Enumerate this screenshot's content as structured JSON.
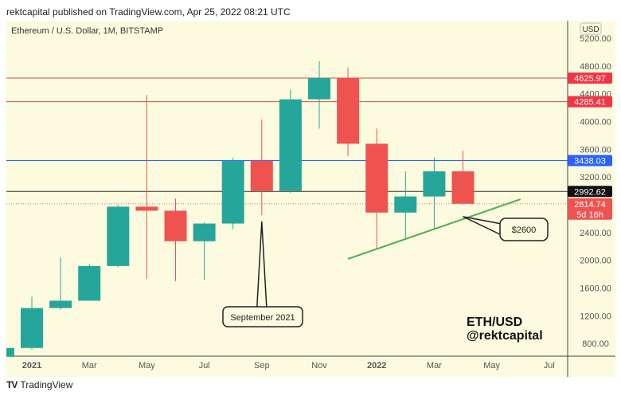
{
  "header": {
    "published": "rektcapital published on TradingView.com, Apr 25, 2022 08:21 UTC"
  },
  "footer": {
    "brand": "TradingView",
    "logo_icon": "tradingview-logo-icon"
  },
  "colors": {
    "up": "#26a69a",
    "down": "#ef5350",
    "resistance": "#c0504d",
    "blue_line": "#2962ff",
    "trendline": "#4caf50",
    "background": "#fdfbdf"
  },
  "chart_data": {
    "type": "candlestick",
    "title": "Ethereum / U.S. Dollar, 1M, BITSTAMP",
    "currency": "USD",
    "ylim": [
      600,
      5400
    ],
    "y_ticks": [
      "5200.00",
      "4800.00",
      "4400.00",
      "4000.00",
      "3600.00",
      "3200.00",
      "2400.00",
      "2000.00",
      "1600.00",
      "1200.00",
      "800.00"
    ],
    "x_ticks": [
      {
        "label": "2021",
        "month": "2021-01",
        "bold": true
      },
      {
        "label": "Mar",
        "month": "2021-03"
      },
      {
        "label": "May",
        "month": "2021-05"
      },
      {
        "label": "Jul",
        "month": "2021-07"
      },
      {
        "label": "Sep",
        "month": "2021-09"
      },
      {
        "label": "Nov",
        "month": "2021-11"
      },
      {
        "label": "2022",
        "month": "2022-01",
        "bold": true
      },
      {
        "label": "Mar",
        "month": "2022-03"
      },
      {
        "label": "May",
        "month": "2022-05"
      },
      {
        "label": "Jul",
        "month": "2022-07"
      }
    ],
    "candles": [
      {
        "month": "2020-12",
        "o": 610,
        "h": 750,
        "l": 600,
        "c": 737
      },
      {
        "month": "2021-01",
        "o": 737,
        "h": 1476,
        "l": 714,
        "c": 1312
      },
      {
        "month": "2021-02",
        "o": 1312,
        "h": 2041,
        "l": 1290,
        "c": 1418
      },
      {
        "month": "2021-03",
        "o": 1418,
        "h": 1947,
        "l": 1430,
        "c": 1918
      },
      {
        "month": "2021-04",
        "o": 1918,
        "h": 2800,
        "l": 1900,
        "c": 2773
      },
      {
        "month": "2021-05",
        "o": 2773,
        "h": 4380,
        "l": 1735,
        "c": 2715
      },
      {
        "month": "2021-06",
        "o": 2715,
        "h": 2890,
        "l": 1700,
        "c": 2275
      },
      {
        "month": "2021-07",
        "o": 2275,
        "h": 2550,
        "l": 1718,
        "c": 2530
      },
      {
        "month": "2021-08",
        "o": 2530,
        "h": 3480,
        "l": 2450,
        "c": 3434
      },
      {
        "month": "2021-09",
        "o": 3434,
        "h": 4030,
        "l": 2650,
        "c": 3000
      },
      {
        "month": "2021-10",
        "o": 3000,
        "h": 4460,
        "l": 2970,
        "c": 4320
      },
      {
        "month": "2021-11",
        "o": 4320,
        "h": 4870,
        "l": 3900,
        "c": 4626
      },
      {
        "month": "2021-12",
        "o": 4626,
        "h": 4780,
        "l": 3500,
        "c": 3680
      },
      {
        "month": "2022-01",
        "o": 3680,
        "h": 3900,
        "l": 2160,
        "c": 2688
      },
      {
        "month": "2022-02",
        "o": 2688,
        "h": 3280,
        "l": 2300,
        "c": 2920
      },
      {
        "month": "2022-03",
        "o": 2920,
        "h": 3480,
        "l": 2450,
        "c": 3282
      },
      {
        "month": "2022-04",
        "o": 3282,
        "h": 3580,
        "l": 2800,
        "c": 2815
      }
    ],
    "levels": [
      {
        "value": 4625.97,
        "label": "4625.97",
        "color": "#c0504d",
        "badge": "#f23645"
      },
      {
        "value": 4285.41,
        "label": "4285.41",
        "color": "#c0504d",
        "badge": "#f23645"
      },
      {
        "value": 3438.03,
        "label": "3438.03",
        "color": "#2962ff",
        "badge": "#2962ff"
      },
      {
        "value": 2992.62,
        "label": "2992.62",
        "color": "#333333",
        "badge": "#111111"
      }
    ],
    "last_price": {
      "value": 2814.74,
      "label": "2814.74",
      "countdown": "5d 16h",
      "badge": "#ef5350"
    },
    "trendline": [
      {
        "month": "2021-12",
        "price": 2020
      },
      {
        "month": "2022-06",
        "price": 2880
      }
    ],
    "annotations": [
      {
        "text": "September 2021",
        "target_month": "2021-09",
        "target_price": 2560,
        "box_month": "2021-09",
        "box_price": 950
      },
      {
        "text": "$2600",
        "target_month": "2022-04",
        "target_price": 2630,
        "box_month": "2022-06",
        "box_price": 2480
      }
    ],
    "watermark": [
      "ETH/USD",
      "@rektcapital"
    ]
  }
}
